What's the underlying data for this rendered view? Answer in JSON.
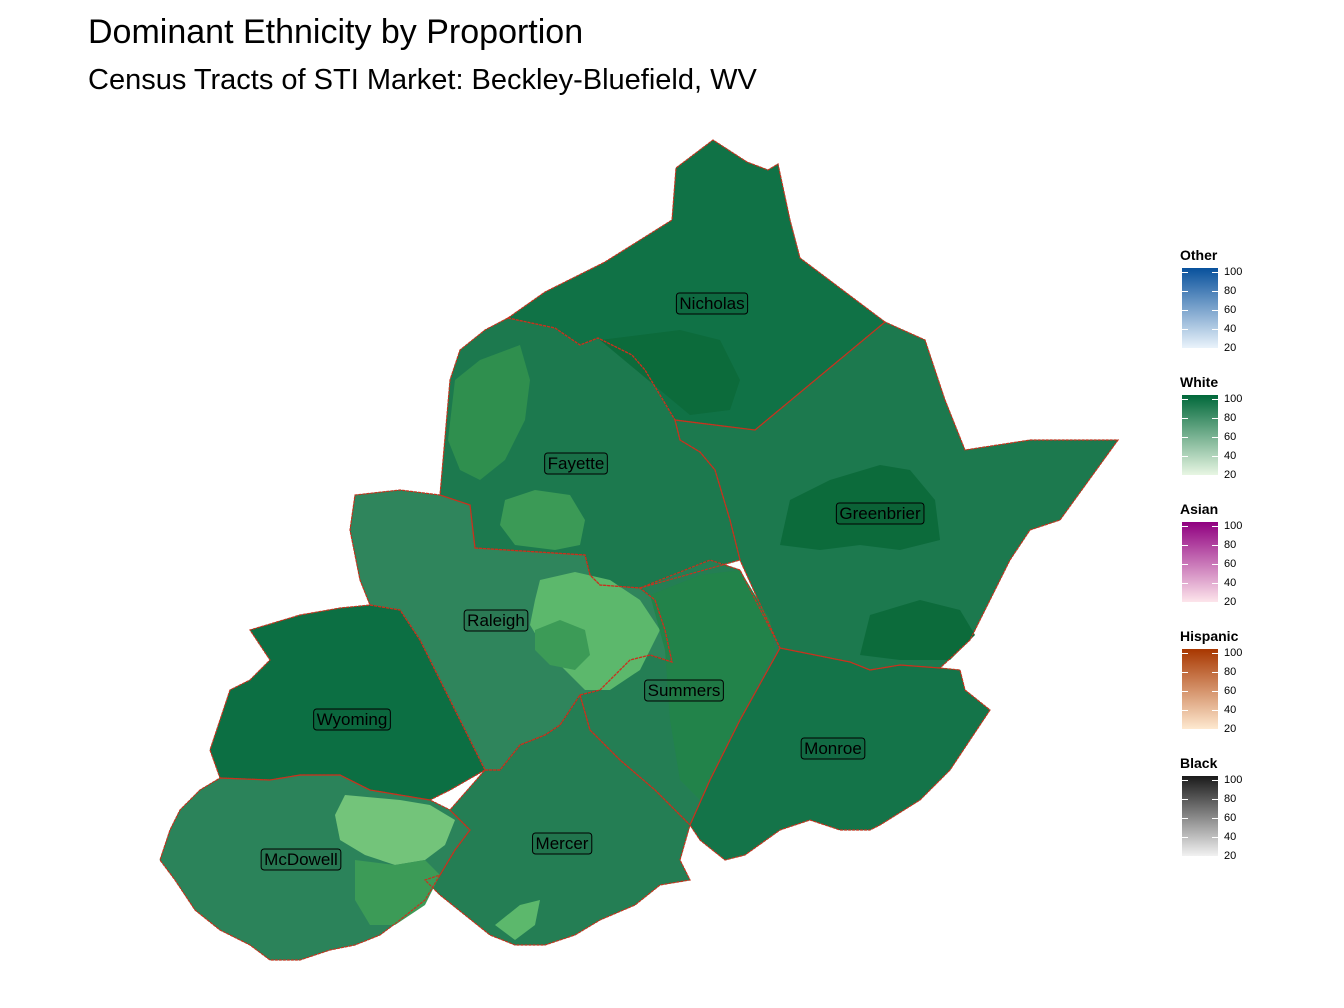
{
  "title": "Dominant Ethnicity by Proportion",
  "subtitle": "Census Tracts of STI Market: Beckley-Bluefield, WV",
  "counties": [
    {
      "name": "Nicholas",
      "white_pct": 96
    },
    {
      "name": "Fayette",
      "white_pct": 93
    },
    {
      "name": "Greenbrier",
      "white_pct": 93
    },
    {
      "name": "Raleigh",
      "white_pct": 88
    },
    {
      "name": "Summers",
      "white_pct": 91
    },
    {
      "name": "Wyoming",
      "white_pct": 97
    },
    {
      "name": "Monroe",
      "white_pct": 95
    },
    {
      "name": "McDowell",
      "white_pct": 89
    },
    {
      "name": "Mercer",
      "white_pct": 91
    }
  ],
  "legend": [
    {
      "title": "Other",
      "color_low": "#eaf3fb",
      "color_high": "#08519c",
      "ticks": [
        "100",
        "80",
        "60",
        "40",
        "20"
      ]
    },
    {
      "title": "White",
      "color_low": "#e8f6e3",
      "color_high": "#00683a",
      "ticks": [
        "100",
        "80",
        "60",
        "40",
        "20"
      ]
    },
    {
      "title": "Asian",
      "color_low": "#fde5eb",
      "color_high": "#900080",
      "ticks": [
        "100",
        "80",
        "60",
        "40",
        "20"
      ]
    },
    {
      "title": "Hispanic",
      "color_low": "#fee9d0",
      "color_high": "#a83700",
      "ticks": [
        "100",
        "80",
        "60",
        "40",
        "20"
      ]
    },
    {
      "title": "Black",
      "color_low": "#f2f2f2",
      "color_high": "#1a1a1a",
      "ticks": [
        "100",
        "80",
        "60",
        "40",
        "20"
      ]
    }
  ],
  "colors": {
    "county_border": "#c8321e",
    "tract_border": "#1a6b35"
  }
}
